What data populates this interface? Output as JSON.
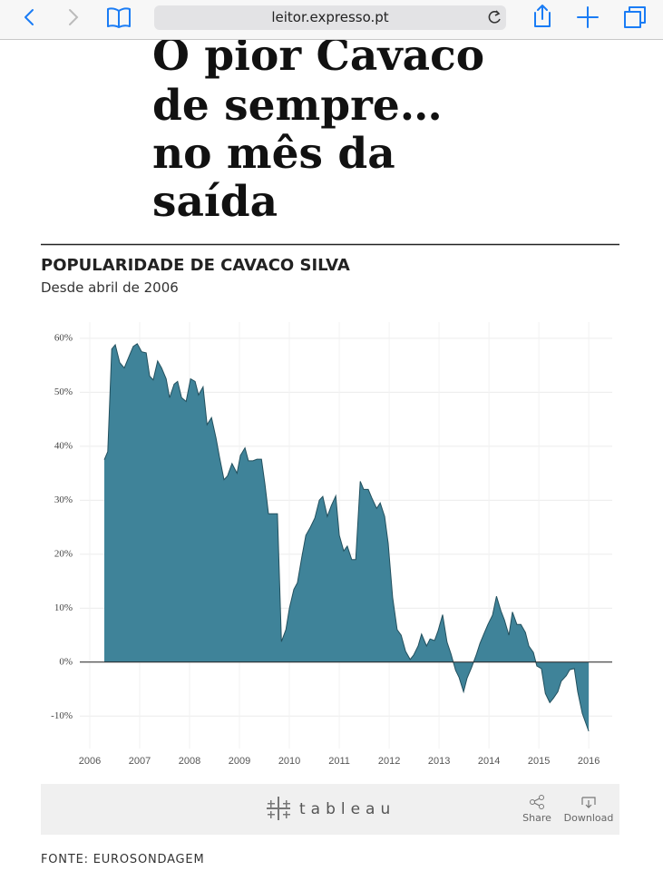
{
  "browser": {
    "url": "leitor.expresso.pt"
  },
  "article": {
    "title_lines": [
      "O pior Cavaco",
      "de sempre…",
      "no mês da",
      "saída"
    ]
  },
  "chart_data": {
    "type": "area",
    "title": "POPULARIDADE DE CAVACO SILVA",
    "subtitle": "Desde abril de 2006",
    "x": [
      2006.29,
      2006.36,
      2006.44,
      2006.51,
      2006.6,
      2006.69,
      2006.78,
      2006.87,
      2006.95,
      2007.04,
      2007.13,
      2007.2,
      2007.27,
      2007.36,
      2007.44,
      2007.53,
      2007.6,
      2007.69,
      2007.76,
      2007.84,
      2007.93,
      2008.02,
      2008.11,
      2008.18,
      2008.27,
      2008.35,
      2008.44,
      2008.53,
      2008.6,
      2008.69,
      2008.76,
      2008.85,
      2008.95,
      2009.02,
      2009.11,
      2009.18,
      2009.27,
      2009.35,
      2009.44,
      2009.51,
      2009.58,
      2009.67,
      2009.76,
      2009.84,
      2009.93,
      2010.0,
      2010.09,
      2010.16,
      2010.25,
      2010.33,
      2010.42,
      2010.51,
      2010.6,
      2010.67,
      2010.76,
      2010.84,
      2010.93,
      2011.0,
      2011.09,
      2011.16,
      2011.25,
      2011.33,
      2011.42,
      2011.49,
      2011.58,
      2011.65,
      2011.75,
      2011.82,
      2011.91,
      2011.98,
      2012.07,
      2012.16,
      2012.24,
      2012.33,
      2012.42,
      2012.49,
      2012.58,
      2012.65,
      2012.75,
      2012.82,
      2012.91,
      2012.98,
      2013.07,
      2013.16,
      2013.24,
      2013.33,
      2013.4,
      2013.49,
      2013.56,
      2013.65,
      2013.75,
      2013.82,
      2013.91,
      2013.98,
      2014.07,
      2014.15,
      2014.24,
      2014.31,
      2014.4,
      2014.47,
      2014.56,
      2014.64,
      2014.73,
      2014.8,
      2014.89,
      2014.96,
      2015.05,
      2015.13,
      2015.22,
      2015.29,
      2015.38,
      2015.45,
      2015.55,
      2015.62,
      2015.71,
      2015.78,
      2015.87,
      2016.0
    ],
    "series": [
      {
        "color": "#3f8399",
        "line_color": "#22505e",
        "values": [
          37.5,
          39,
          58,
          58.8,
          55.5,
          54.5,
          56.5,
          58.5,
          59,
          57.5,
          57.3,
          53,
          52.3,
          55.8,
          54.5,
          52.5,
          49,
          51.5,
          52,
          49,
          48.3,
          52.5,
          52,
          49.5,
          51,
          44,
          45.3,
          41.5,
          38,
          33.8,
          34.5,
          36.8,
          35,
          38.3,
          39.7,
          37.3,
          37.3,
          37.6,
          37.6,
          33,
          27.5,
          27.5,
          27.5,
          3.8,
          6,
          10,
          13.5,
          14.7,
          19.5,
          23.5,
          25,
          26.7,
          30,
          30.7,
          27,
          29,
          30.8,
          23.5,
          20.6,
          21.5,
          19,
          19,
          33.5,
          32,
          32,
          30.5,
          28.5,
          29.5,
          27,
          22,
          12,
          6,
          5,
          2,
          0.5,
          1.3,
          3,
          5.2,
          3,
          4.3,
          4,
          5.8,
          8.8,
          3.7,
          1.5,
          -1.5,
          -2.8,
          -5.5,
          -3,
          -1,
          1.5,
          3.5,
          5.5,
          7,
          8.7,
          12.2,
          9.5,
          7.8,
          5,
          9.3,
          7,
          7,
          5.5,
          3,
          1.8,
          -0.7,
          -1.2,
          -5.8,
          -7.5,
          -6.7,
          -5.5,
          -3.5,
          -2.5,
          -1.4,
          -1.2,
          -5.5,
          -9.5,
          -12.8
        ]
      }
    ],
    "xlim": [
      2005.8,
      2016.47
    ],
    "xticks": [
      2006,
      2007,
      2008,
      2009,
      2010,
      2011,
      2012,
      2013,
      2014,
      2015,
      2016
    ],
    "ylim": [
      -16,
      63
    ],
    "yticks": [
      {
        "value": -10,
        "label": "-10%"
      },
      {
        "value": 0,
        "label": "0%"
      },
      {
        "value": 10,
        "label": "10%"
      },
      {
        "value": 20,
        "label": "20%"
      },
      {
        "value": 30,
        "label": "30%"
      },
      {
        "value": 40,
        "label": "40%"
      },
      {
        "value": 50,
        "label": "50%"
      },
      {
        "value": 60,
        "label": "60%"
      }
    ],
    "grid": true
  },
  "toolbar": {
    "logo": "tableau",
    "share": "Share",
    "download": "Download"
  },
  "footer": {
    "source": "FONTE: EUROSONDAGEM"
  }
}
